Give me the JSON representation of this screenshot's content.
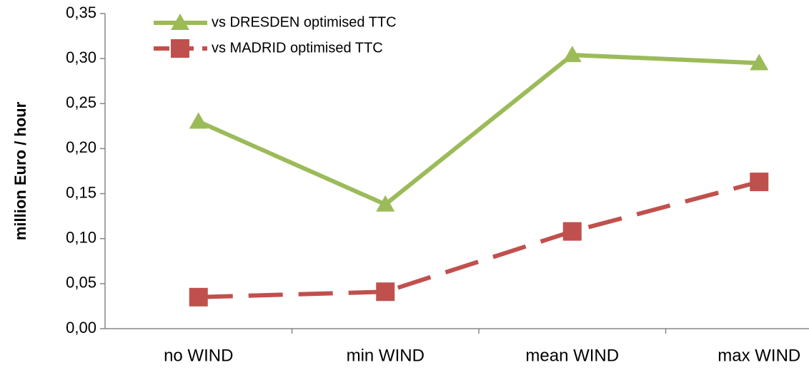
{
  "chart_data": {
    "type": "line",
    "y_label": "million Euro / hour",
    "categories": [
      "no WIND",
      "min WIND",
      "mean WIND",
      "max WIND"
    ],
    "series": [
      {
        "name": "vs DRESDEN optimised TTC",
        "color": "#9bbb59",
        "marker": "triangle",
        "dash": false,
        "values": [
          0.23,
          0.138,
          0.304,
          0.295
        ]
      },
      {
        "name": "vs MADRID optimised TTC",
        "color": "#c0504d",
        "marker": "square",
        "dash": true,
        "values": [
          0.035,
          0.041,
          0.108,
          0.163
        ]
      }
    ],
    "ylim": [
      0,
      0.35
    ],
    "yticks": [
      {
        "value": 0,
        "label": "0,00"
      },
      {
        "value": 0.05,
        "label": "0,05"
      },
      {
        "value": 0.1,
        "label": "0,10"
      },
      {
        "value": 0.15,
        "label": "0,15"
      },
      {
        "value": 0.2,
        "label": "0,20"
      },
      {
        "value": 0.25,
        "label": "0,25"
      },
      {
        "value": 0.3,
        "label": "0,30"
      },
      {
        "value": 0.35,
        "label": "0,35"
      }
    ],
    "grid": false,
    "legend": "top-left"
  }
}
